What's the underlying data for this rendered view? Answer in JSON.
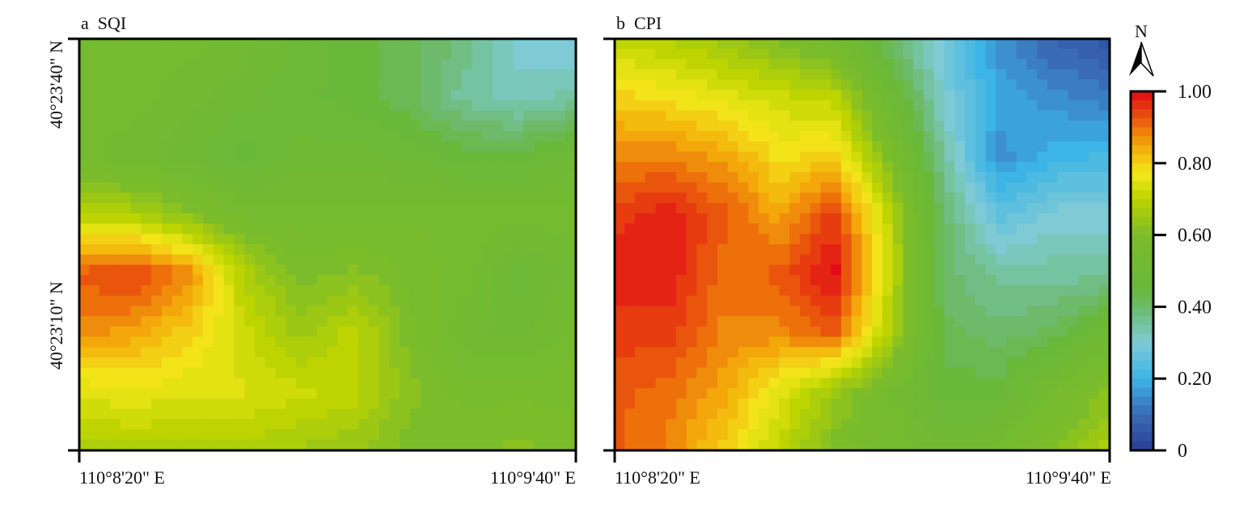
{
  "chart_data": {
    "type": "heatmap",
    "colorbar": {
      "range": [
        0,
        1
      ],
      "ticks": [
        "1.00",
        "0.80",
        "0.60",
        "0.40",
        "0.20",
        "0"
      ],
      "tick_values": [
        1.0,
        0.8,
        0.6,
        0.4,
        0.2,
        0
      ],
      "stops": [
        [
          0,
          "#2a3f94"
        ],
        [
          0.1,
          "#3a6bb5"
        ],
        [
          0.2,
          "#3db4e6"
        ],
        [
          0.3,
          "#7ecbd6"
        ],
        [
          0.4,
          "#6cba6a"
        ],
        [
          0.45,
          "#69b83a"
        ],
        [
          0.6,
          "#7bbc2a"
        ],
        [
          0.7,
          "#bdd400"
        ],
        [
          0.77,
          "#f3e81b"
        ],
        [
          0.85,
          "#f4a70a"
        ],
        [
          0.92,
          "#ea5a0c"
        ],
        [
          1.0,
          "#e30a17"
        ]
      ]
    },
    "north_arrow_label": "N",
    "panels": [
      {
        "label": "a  SQI",
        "x_ticks": [
          "110°8'20\" E",
          "110°9'40\" E"
        ],
        "y_ticks": [
          "40°23'40\" N",
          "40°23'10\" N"
        ],
        "grid": [
          [
            0.55,
            0.55,
            0.55,
            0.52,
            0.48,
            0.45,
            0.42,
            0.38,
            0.3,
            0.28
          ],
          [
            0.55,
            0.55,
            0.52,
            0.5,
            0.47,
            0.45,
            0.42,
            0.35,
            0.32,
            0.35
          ],
          [
            0.55,
            0.52,
            0.5,
            0.45,
            0.5,
            0.5,
            0.48,
            0.45,
            0.45,
            0.5
          ],
          [
            0.7,
            0.68,
            0.62,
            0.55,
            0.55,
            0.55,
            0.56,
            0.55,
            0.55,
            0.55
          ],
          [
            0.92,
            0.95,
            0.88,
            0.68,
            0.6,
            0.62,
            0.58,
            0.55,
            0.48,
            0.52
          ],
          [
            0.88,
            0.85,
            0.8,
            0.72,
            0.65,
            0.7,
            0.6,
            0.52,
            0.5,
            0.55
          ],
          [
            0.74,
            0.76,
            0.74,
            0.74,
            0.72,
            0.7,
            0.62,
            0.58,
            0.58,
            0.58
          ],
          [
            0.68,
            0.68,
            0.68,
            0.68,
            0.66,
            0.64,
            0.6,
            0.6,
            0.62,
            0.6
          ]
        ]
      },
      {
        "label": "b  CPI",
        "x_ticks": [
          "110°8'20\" E",
          "110°9'40\" E"
        ],
        "y_ticks": [],
        "grid": [
          [
            0.7,
            0.68,
            0.65,
            0.6,
            0.55,
            0.4,
            0.28,
            0.15,
            0.08,
            0.05
          ],
          [
            0.8,
            0.78,
            0.75,
            0.72,
            0.7,
            0.5,
            0.3,
            0.18,
            0.15,
            0.12
          ],
          [
            0.88,
            0.88,
            0.85,
            0.78,
            0.8,
            0.6,
            0.35,
            0.15,
            0.2,
            0.22
          ],
          [
            0.95,
            0.98,
            0.92,
            0.85,
            0.95,
            0.7,
            0.4,
            0.25,
            0.3,
            0.3
          ],
          [
            0.98,
            0.98,
            0.9,
            0.92,
            1.0,
            0.72,
            0.4,
            0.35,
            0.35,
            0.35
          ],
          [
            0.95,
            0.95,
            0.88,
            0.88,
            0.92,
            0.68,
            0.42,
            0.4,
            0.42,
            0.5
          ],
          [
            0.92,
            0.9,
            0.85,
            0.75,
            0.65,
            0.55,
            0.45,
            0.45,
            0.55,
            0.62
          ],
          [
            0.92,
            0.88,
            0.8,
            0.7,
            0.6,
            0.55,
            0.52,
            0.55,
            0.62,
            0.68
          ]
        ]
      }
    ]
  }
}
